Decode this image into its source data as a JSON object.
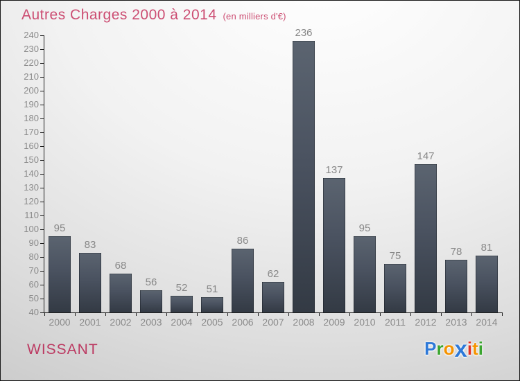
{
  "header": {
    "title": "Autres Charges 2000 à 2014",
    "subtitle": "(en milliers d'€)"
  },
  "footer": {
    "location": "WISSANT",
    "brand": {
      "name": "Proxiti",
      "letters": [
        {
          "ch": "P",
          "color": "#2e79d8",
          "big": false
        },
        {
          "ch": "r",
          "color": "#3aa52f",
          "big": false
        },
        {
          "ch": "o",
          "color": "#f59300",
          "big": false
        },
        {
          "ch": "x",
          "color": "#2e79d8",
          "big": true
        },
        {
          "ch": "i",
          "color": "#e33022",
          "big": false
        },
        {
          "ch": "t",
          "color": "#f59300",
          "big": false
        },
        {
          "ch": "i",
          "color": "#3aa52f",
          "big": false
        }
      ]
    }
  },
  "chart_data": {
    "type": "bar",
    "title": "Autres Charges 2000 à 2014",
    "subtitle": "(en milliers d'€)",
    "categories": [
      "2000",
      "2001",
      "2002",
      "2003",
      "2004",
      "2005",
      "2006",
      "2007",
      "2008",
      "2009",
      "2010",
      "2011",
      "2012",
      "2013",
      "2014"
    ],
    "values": [
      95,
      83,
      68,
      56,
      52,
      51,
      86,
      62,
      236,
      137,
      95,
      75,
      147,
      78,
      81
    ],
    "xlabel": "",
    "ylabel": "",
    "ylim": [
      40,
      240
    ],
    "yticks": [
      40,
      50,
      60,
      70,
      80,
      90,
      100,
      110,
      120,
      130,
      140,
      150,
      160,
      170,
      180,
      190,
      200,
      210,
      220,
      230,
      240
    ],
    "grid": false,
    "legend": false,
    "value_labels_shown": true,
    "colors": {
      "bar_gradient_top": "#5b6470",
      "bar_gradient_bottom": "#333a44",
      "axis": "#1c1c1c",
      "tick_label": "#8a8a8a",
      "value_label": "#888888",
      "title": "#cc4d72",
      "location_text": "#bc3a62"
    }
  }
}
